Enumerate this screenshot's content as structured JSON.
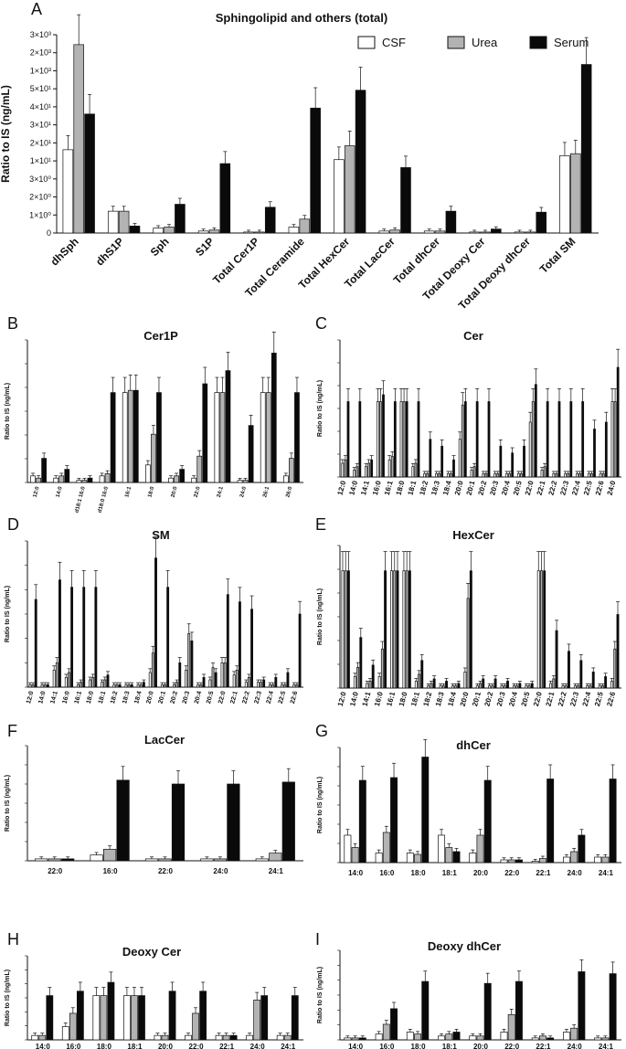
{
  "legend": {
    "items": [
      {
        "label": "CSF",
        "color": "#ffffff"
      },
      {
        "label": "Urea",
        "color": "#b3b3b3"
      },
      {
        "label": "Serum",
        "color": "#0a0a0a"
      }
    ]
  },
  "chart_data": [
    {
      "panel": "A",
      "type": "bar",
      "title": "Sphingolipid and others (total)",
      "ylabel": "Ratio to IS (ng/mL)",
      "yticks": [
        "0",
        "1×10⁰",
        "2×10⁰",
        "3×10⁰",
        "1×10¹",
        "2×10¹",
        "3×10¹",
        "4×10¹",
        "5×10¹",
        "1×10³",
        "2×10³",
        "3×10³"
      ],
      "categories": [
        "dhSph",
        "dhS1P",
        "Sph",
        "S1P",
        "Total Cer1P",
        "Total Ceramide",
        "Total HexCer",
        "Total LacCer",
        "Total dhCer",
        "Total Deoxy Cer",
        "Total Deoxy dhCer",
        "Total SM"
      ],
      "series": [
        {
          "name": "CSF",
          "values": [
            4.2,
            1.1,
            0.25,
            0.1,
            0.05,
            0.3,
            3.7,
            0.1,
            0.1,
            0.05,
            0.05,
            3.9
          ]
        },
        {
          "name": "Urea",
          "values": [
            9.5,
            1.1,
            0.3,
            0.15,
            0.05,
            0.7,
            4.4,
            0.15,
            0.1,
            0.05,
            0.05,
            4.0
          ]
        },
        {
          "name": "Serum",
          "values": [
            6.0,
            0.35,
            1.45,
            3.5,
            1.3,
            6.3,
            7.2,
            3.3,
            1.1,
            0.2,
            1.05,
            8.5
          ]
        }
      ]
    },
    {
      "panel": "B",
      "type": "bar",
      "title": "Cer1P",
      "ylabel": "Ratio to IS (ng/mL)",
      "categories": [
        "12:0",
        "14:0",
        "d18:1 16:0",
        "d18:0 16:0",
        "16:1",
        "18:0",
        "20:0",
        "22:0",
        "24:1",
        "24:0",
        "26:1",
        "26:0"
      ],
      "series": [
        {
          "name": "CSF",
          "values": [
            0.3,
            0.2,
            0.1,
            0.3,
            4.1,
            0.8,
            0.2,
            0.2,
            4.1,
            0.1,
            4.1,
            0.3
          ]
        },
        {
          "name": "Urea",
          "values": [
            0.2,
            0.3,
            0.1,
            0.4,
            4.2,
            2.2,
            0.3,
            1.2,
            4.1,
            0.1,
            4.1,
            1.1
          ]
        },
        {
          "name": "Serum",
          "values": [
            1.1,
            0.6,
            0.2,
            4.1,
            4.2,
            4.1,
            0.6,
            4.5,
            5.1,
            2.6,
            5.9,
            4.1
          ]
        }
      ]
    },
    {
      "panel": "C",
      "type": "bar",
      "title": "Cer",
      "ylabel": "Ratio to IS (ng/mL)",
      "categories": [
        "12:0",
        "14:0",
        "14:1",
        "16:0",
        "16:1",
        "18:0",
        "18:1",
        "18:2",
        "18:3",
        "18:4",
        "20:0",
        "20:1",
        "20:2",
        "20:3",
        "20:4",
        "20:5",
        "22:0",
        "22:1",
        "22:2",
        "22:3",
        "22:4",
        "22:5",
        "22:6",
        "24:0"
      ],
      "series": [
        {
          "name": "CSF",
          "values": [
            0.4,
            0.2,
            0.3,
            2.2,
            0.5,
            2.2,
            0.3,
            0.1,
            0.1,
            0.1,
            1.1,
            0.2,
            0.1,
            0.1,
            0.1,
            0.1,
            1.6,
            0.2,
            0.1,
            0.1,
            0.1,
            0.1,
            0.1,
            2.2
          ]
        },
        {
          "name": "Urea",
          "values": [
            0.5,
            0.3,
            0.4,
            2.2,
            0.6,
            2.2,
            0.4,
            0.1,
            0.1,
            0.1,
            2.1,
            0.3,
            0.1,
            0.1,
            0.1,
            0.1,
            2.2,
            0.3,
            0.1,
            0.1,
            0.1,
            0.1,
            0.1,
            2.2
          ]
        },
        {
          "name": "Serum",
          "values": [
            2.2,
            2.2,
            0.5,
            2.4,
            2.2,
            2.2,
            2.2,
            1.1,
            0.9,
            0.5,
            2.2,
            2.2,
            2.2,
            0.9,
            0.7,
            0.9,
            2.7,
            2.2,
            2.2,
            2.2,
            2.2,
            1.4,
            1.6,
            3.2
          ]
        }
      ]
    },
    {
      "panel": "D",
      "type": "bar",
      "title": "SM",
      "ylabel": "Ratio to IS (ng/mL)",
      "categories": [
        "12:0",
        "14:0",
        "14:1",
        "16:0",
        "16:1",
        "18:0",
        "18:1",
        "18:2",
        "18:3",
        "18:4",
        "20:0",
        "20:1",
        "20:2",
        "20:3",
        "20:4",
        "20:5",
        "22:0",
        "22:1",
        "22:2",
        "22:3",
        "22:4",
        "22:5",
        "22:6"
      ],
      "series": [
        {
          "name": "CSF",
          "values": [
            0.1,
            0.1,
            0.7,
            0.4,
            0.1,
            0.3,
            0.2,
            0.1,
            0.1,
            0.1,
            0.6,
            0.1,
            0.1,
            0.7,
            0.1,
            0.3,
            1.0,
            0.5,
            0.2,
            0.2,
            0.1,
            0.1,
            0.1
          ]
        },
        {
          "name": "Urea",
          "values": [
            0.1,
            0.1,
            1.0,
            0.6,
            0.2,
            0.4,
            0.3,
            0.1,
            0.1,
            0.1,
            1.4,
            0.1,
            0.2,
            2.2,
            0.1,
            0.8,
            1.0,
            0.7,
            0.4,
            0.2,
            0.1,
            0.1,
            0.1
          ]
        },
        {
          "name": "Serum",
          "values": [
            3.6,
            0.1,
            4.4,
            4.1,
            4.1,
            4.1,
            0.5,
            0.1,
            0.1,
            0.2,
            5.3,
            4.1,
            1.0,
            1.9,
            0.4,
            0.6,
            3.8,
            3.5,
            3.2,
            0.3,
            0.4,
            0.6,
            3.0
          ]
        }
      ]
    },
    {
      "panel": "E",
      "type": "bar",
      "title": "HexCer",
      "ylabel": "Ratio to IS (ng/mL)",
      "categories": [
        "12:0",
        "14:0",
        "14:1",
        "16:0",
        "16:1",
        "18:0",
        "18:1",
        "18:2",
        "18:3",
        "18:4",
        "20:0",
        "20:1",
        "20:2",
        "20:3",
        "20:4",
        "20:5",
        "22:0",
        "22:1",
        "22:2",
        "22:3",
        "22:4",
        "22:5",
        "22:6"
      ],
      "series": [
        {
          "name": "CSF",
          "values": [
            5.1,
            0.5,
            0.2,
            0.5,
            5.1,
            5.1,
            0.3,
            0.1,
            0.1,
            0.1,
            0.7,
            0.1,
            0.1,
            0.1,
            0.1,
            0.1,
            5.1,
            0.2,
            0.1,
            0.1,
            0.1,
            0.1,
            0.3
          ]
        },
        {
          "name": "Urea",
          "values": [
            5.1,
            0.9,
            0.3,
            1.7,
            5.1,
            5.1,
            0.6,
            0.2,
            0.1,
            0.1,
            3.9,
            0.2,
            0.1,
            0.1,
            0.1,
            0.1,
            5.1,
            0.4,
            0.1,
            0.1,
            0.1,
            0.1,
            1.7
          ]
        },
        {
          "name": "Serum",
          "values": [
            5.1,
            2.2,
            1.0,
            5.1,
            5.1,
            5.1,
            1.2,
            0.4,
            0.3,
            0.2,
            5.1,
            0.4,
            0.4,
            0.3,
            0.2,
            0.2,
            5.1,
            2.5,
            1.6,
            1.2,
            0.7,
            0.5,
            3.2
          ]
        }
      ]
    },
    {
      "panel": "F",
      "type": "bar",
      "title": "LacCer",
      "ylabel": "Ratio to IS (ng/mL)",
      "categories": [
        "22:0",
        "16:0",
        "22:0",
        "24:0",
        "24:1"
      ],
      "series": [
        {
          "name": "CSF",
          "values": [
            0.1,
            0.3,
            0.1,
            0.1,
            0.1
          ]
        },
        {
          "name": "Urea",
          "values": [
            0.1,
            0.6,
            0.1,
            0.1,
            0.4
          ]
        },
        {
          "name": "Serum",
          "values": [
            0.1,
            4.2,
            4.0,
            4.0,
            4.1
          ]
        }
      ]
    },
    {
      "panel": "G",
      "type": "bar",
      "title": "dhCer",
      "ylabel": "Ratio to IS (ng/mL)",
      "categories": [
        "14:0",
        "16:0",
        "18:0",
        "18:1",
        "20:0",
        "22:0",
        "22:1",
        "24:0",
        "24:1"
      ],
      "series": [
        {
          "name": "CSF",
          "values": [
            2.0,
            0.7,
            0.7,
            2.0,
            0.7,
            0.2,
            0.1,
            0.4,
            0.4
          ]
        },
        {
          "name": "Urea",
          "values": [
            1.1,
            2.2,
            0.6,
            1.1,
            2.0,
            0.2,
            0.3,
            0.8,
            0.4
          ]
        },
        {
          "name": "Serum",
          "values": [
            6.0,
            6.2,
            7.7,
            0.8,
            6.0,
            0.2,
            6.1,
            2.0,
            6.1
          ]
        }
      ]
    },
    {
      "panel": "H",
      "type": "bar",
      "title": "Deoxy Cer",
      "ylabel": "Ratio to IS (ng/mL)",
      "categories": [
        "14:0",
        "16:0",
        "18:0",
        "18:1",
        "20:0",
        "22:0",
        "22:1",
        "24:0",
        "24:1"
      ],
      "series": [
        {
          "name": "CSF",
          "values": [
            0.1,
            0.3,
            1.0,
            1.0,
            0.1,
            0.1,
            0.1,
            0.1,
            0.1
          ]
        },
        {
          "name": "Urea",
          "values": [
            0.1,
            0.6,
            1.0,
            1.0,
            0.1,
            0.6,
            0.1,
            0.9,
            0.1
          ]
        },
        {
          "name": "Serum",
          "values": [
            1.0,
            1.1,
            1.3,
            1.0,
            1.1,
            1.1,
            0.1,
            1.0,
            1.0
          ]
        }
      ]
    },
    {
      "panel": "I",
      "type": "bar",
      "title": "Deoxy dhCer",
      "ylabel": "Ratio to IS (ng/mL)",
      "categories": [
        "14:0",
        "16:0",
        "18:0",
        "18:1",
        "20:0",
        "22:0",
        "22:1",
        "24:0",
        "24:1"
      ],
      "series": [
        {
          "name": "CSF",
          "values": [
            0.1,
            0.3,
            0.4,
            0.2,
            0.2,
            0.4,
            0.1,
            0.4,
            0.1
          ]
        },
        {
          "name": "Urea",
          "values": [
            0.1,
            0.8,
            0.3,
            0.3,
            0.2,
            1.3,
            0.2,
            0.6,
            0.1
          ]
        },
        {
          "name": "Serum",
          "values": [
            0.1,
            1.6,
            3.0,
            0.4,
            2.9,
            3.0,
            0.1,
            3.5,
            3.4
          ]
        }
      ]
    }
  ]
}
